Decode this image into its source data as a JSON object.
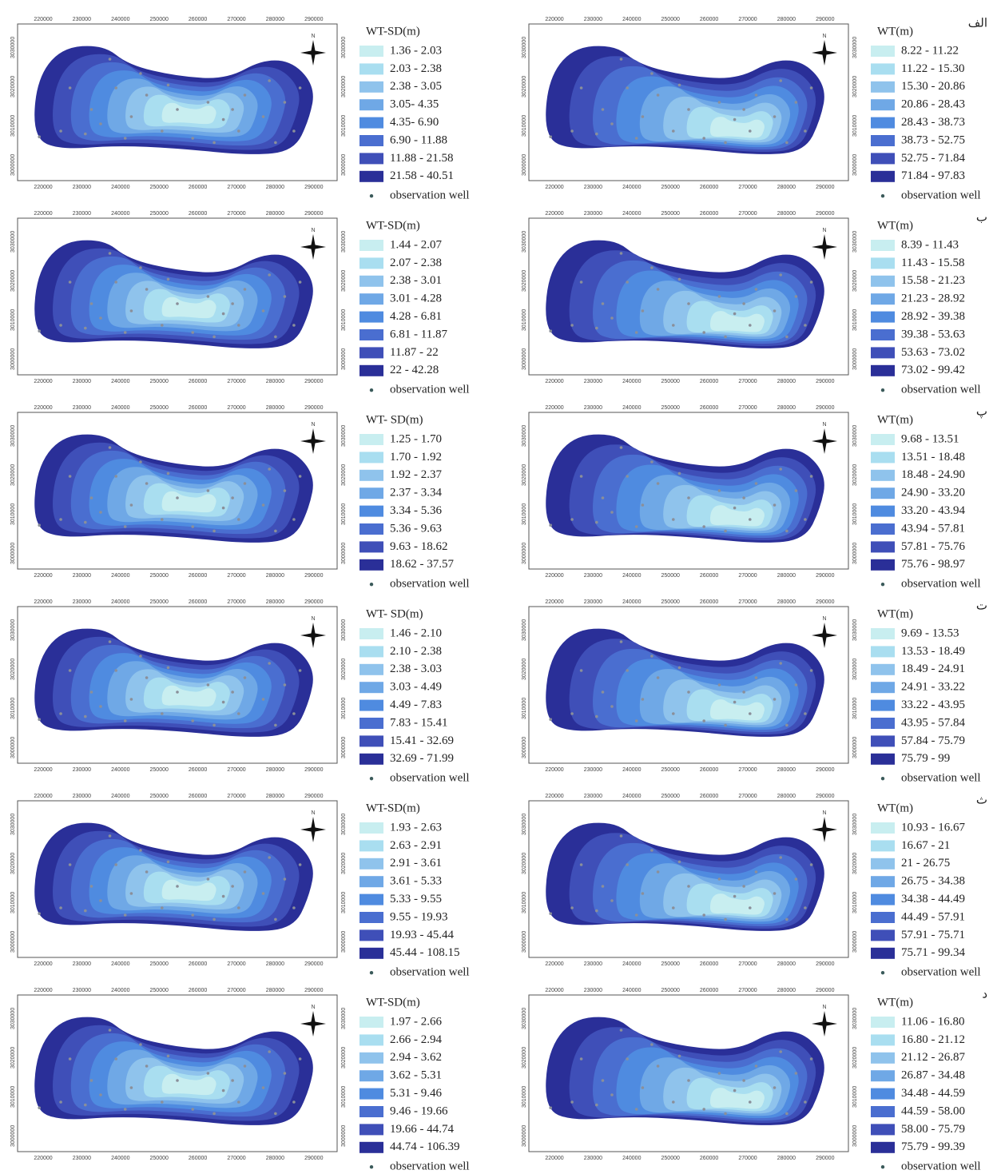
{
  "x_ticks": [
    "220000",
    "230000",
    "240000",
    "250000",
    "260000",
    "270000",
    "280000",
    "290000"
  ],
  "y_ticks": [
    "3000000",
    "3010000",
    "3020000",
    "3030000"
  ],
  "north": "N",
  "well_label": "observation well",
  "colors": [
    "#c8eef0",
    "#a9def0",
    "#8fc3ec",
    "#6fa8e6",
    "#4f8be0",
    "#4a6ed0",
    "#3f4fb8",
    "#2a2f98"
  ],
  "panels": [
    {
      "legend_title": "WT-SD(m)",
      "classes": [
        "1.36 - 2.03",
        "2.03 - 2.38",
        "2.38 - 3.05",
        "3.05- 4.35",
        "4.35- 6.90",
        "6.90 - 11.88",
        "11.88 - 21.58",
        "21.58 - 40.51"
      ]
    },
    {
      "label": "الف",
      "legend_title": "WT(m)",
      "classes": [
        "8.22 - 11.22",
        "11.22 - 15.30",
        "15.30 - 20.86",
        "20.86 - 28.43",
        "28.43 - 38.73",
        "38.73 - 52.75",
        "52.75 - 71.84",
        "71.84 - 97.83"
      ]
    },
    {
      "legend_title": "WT-SD(m)",
      "classes": [
        "1.44 - 2.07",
        "2.07 - 2.38",
        "2.38 - 3.01",
        "3.01 - 4.28",
        "4.28 - 6.81",
        "6.81 - 11.87",
        "11.87 - 22",
        "22 - 42.28"
      ]
    },
    {
      "label": "ب",
      "legend_title": "WT(m)",
      "classes": [
        "8.39 - 11.43",
        "11.43 - 15.58",
        "15.58 - 21.23",
        "21.23 - 28.92",
        "28.92 - 39.38",
        "39.38 - 53.63",
        "53.63 - 73.02",
        "73.02 - 99.42"
      ]
    },
    {
      "legend_title": "WT- SD(m)",
      "classes": [
        "1.25 - 1.70",
        "1.70 - 1.92",
        "1.92 - 2.37",
        "2.37 - 3.34",
        "3.34 - 5.36",
        "5.36 - 9.63",
        "9.63 - 18.62",
        "18.62 - 37.57"
      ]
    },
    {
      "label": "پ",
      "legend_title": "WT(m)",
      "classes": [
        "9.68 - 13.51",
        "13.51 - 18.48",
        "18.48 - 24.90",
        "24.90 - 33.20",
        "33.20 - 43.94",
        "43.94 - 57.81",
        "57.81 - 75.76",
        "75.76 - 98.97"
      ]
    },
    {
      "legend_title": "WT- SD(m)",
      "classes": [
        "1.46 - 2.10",
        "2.10 - 2.38",
        "2.38 - 3.03",
        "3.03 - 4.49",
        "4.49 - 7.83",
        "7.83 - 15.41",
        "15.41 - 32.69",
        "32.69 - 71.99"
      ]
    },
    {
      "label": "ت",
      "legend_title": "WT(m)",
      "classes": [
        "9.69 - 13.53",
        "13.53 - 18.49",
        "18.49 - 24.91",
        "24.91 - 33.22",
        "33.22 - 43.95",
        "43.95 - 57.84",
        "57.84 - 75.79",
        "75.79 - 99"
      ]
    },
    {
      "legend_title": "WT-SD(m)",
      "classes": [
        "1.93 - 2.63",
        "2.63 - 2.91",
        "2.91 - 3.61",
        "3.61 - 5.33",
        "5.33 - 9.55",
        "9.55 - 19.93",
        "19.93 - 45.44",
        "45.44 - 108.15"
      ]
    },
    {
      "label": "ث",
      "legend_title": "WT(m)",
      "classes": [
        "10.93 - 16.67",
        "16.67 - 21",
        "21 - 26.75",
        "26.75 - 34.38",
        "34.38 - 44.49",
        "44.49 - 57.91",
        "57.91 - 75.71",
        "75.71 - 99.34"
      ]
    },
    {
      "legend_title": "WT-SD(m)",
      "classes": [
        "1.97 - 2.66",
        "2.66 - 2.94",
        "2.94 - 3.62",
        "3.62 - 5.31",
        "5.31 - 9.46",
        "9.46 - 19.66",
        "19.66 - 44.74",
        "44.74 - 106.39"
      ]
    },
    {
      "label": "د",
      "legend_title": "WT(m)",
      "classes": [
        "11.06 - 16.80",
        "16.80 - 21.12",
        "21.12 - 26.87",
        "26.87 - 34.48",
        "34.48 - 44.59",
        "44.59 - 58.00",
        "58.00 - 75.79",
        "75.79 - 99.39"
      ]
    }
  ]
}
